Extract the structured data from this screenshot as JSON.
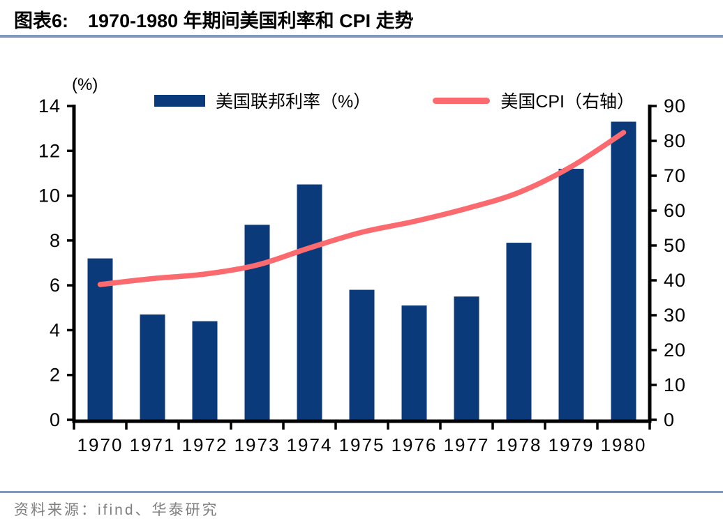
{
  "header": {
    "figure_label": "图表6:",
    "title": "1970-1980 年期间美国利率和 CPI 走势"
  },
  "chart_data": {
    "type": "bar",
    "title": "1970-1980 年期间美国利率和 CPI 走势",
    "categories": [
      "1970",
      "1971",
      "1972",
      "1973",
      "1974",
      "1975",
      "1976",
      "1977",
      "1978",
      "1979",
      "1980"
    ],
    "series": [
      {
        "name": "美国联邦利率（%）",
        "type": "bar",
        "axis": "left",
        "color": "#0B3A7B",
        "values": [
          7.2,
          4.7,
          4.4,
          8.7,
          10.5,
          5.8,
          5.1,
          5.5,
          7.9,
          11.2,
          13.3
        ]
      },
      {
        "name": "美国CPI（右轴）",
        "type": "line",
        "axis": "right",
        "color": "#FA6A6E",
        "values": [
          38.8,
          40.5,
          41.8,
          44.4,
          49.3,
          53.8,
          56.9,
          60.6,
          65.2,
          72.6,
          82.4
        ]
      }
    ],
    "left_axis": {
      "label": "(%)",
      "min": 0,
      "max": 14,
      "step": 2
    },
    "right_axis": {
      "label": "",
      "min": 0,
      "max": 90,
      "step": 10
    },
    "legend_position": "top",
    "grid": false
  },
  "footer": {
    "source": "资料来源：ifind、华泰研究"
  },
  "colors": {
    "divider": "#7E99BB",
    "axis": "#000000",
    "source_text": "#7F7F7F",
    "title_text": "#000000"
  }
}
